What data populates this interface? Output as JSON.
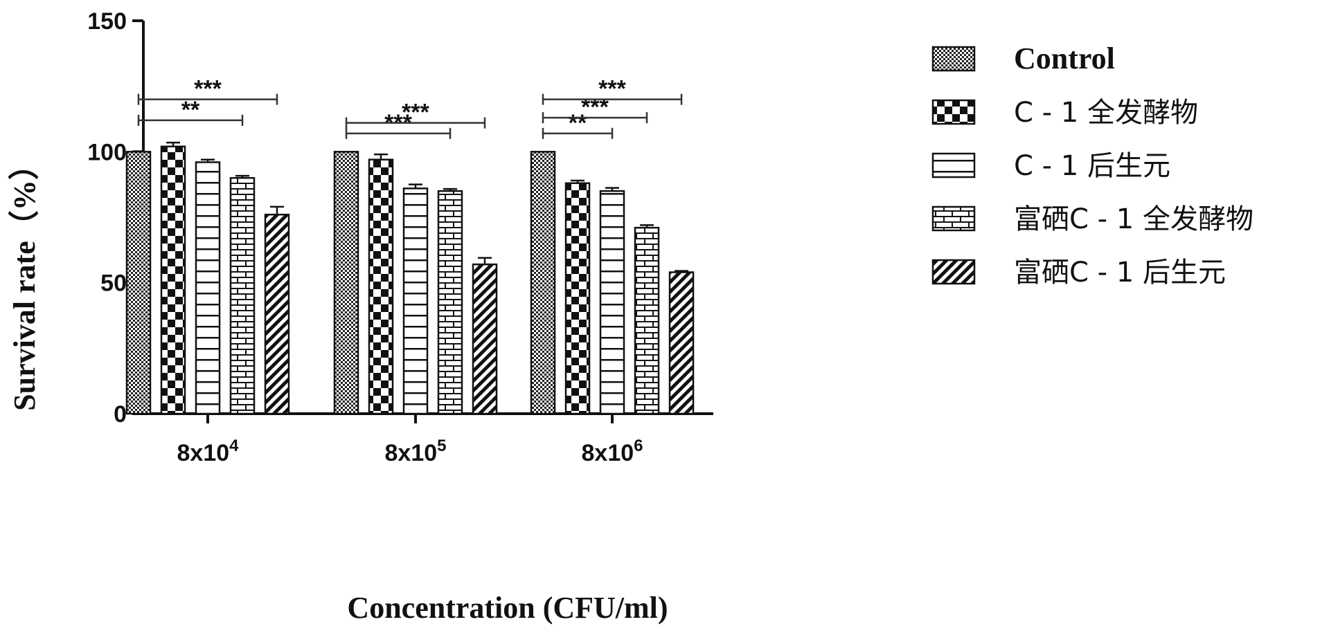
{
  "chart_data": {
    "type": "bar",
    "ylabel": "Survival rate（%）",
    "xlabel": "Concentration (CFU/ml)",
    "ylim": [
      0,
      150
    ],
    "yticks": [
      0,
      50,
      100,
      150
    ],
    "categories": [
      {
        "base": "8x10",
        "exp": "4"
      },
      {
        "base": "8x10",
        "exp": "5"
      },
      {
        "base": "8x10",
        "exp": "6"
      }
    ],
    "series": [
      {
        "name": "Control",
        "values": [
          100,
          100,
          100
        ],
        "errors": [
          0,
          0,
          0
        ],
        "pattern": "pat-dots"
      },
      {
        "name": "C-1全发酵物",
        "values": [
          102,
          97,
          88
        ],
        "errors": [
          1.5,
          2,
          1
        ],
        "pattern": "pat-checker"
      },
      {
        "name": "C-1后生元",
        "values": [
          96,
          86,
          85
        ],
        "errors": [
          1,
          1.5,
          1.2
        ],
        "pattern": "pat-hlines"
      },
      {
        "name": "富硒C-1全发酵物",
        "values": [
          90,
          85,
          71
        ],
        "errors": [
          0.8,
          0.8,
          1
        ],
        "pattern": "pat-brick"
      },
      {
        "name": "富硒C-1后生元",
        "values": [
          76,
          57,
          54
        ],
        "errors": [
          3,
          2.5,
          0.5
        ],
        "pattern": "pat-diag"
      }
    ],
    "significance": [
      {
        "group": 0,
        "from": 0,
        "to": 3,
        "y": 112,
        "label": "**"
      },
      {
        "group": 0,
        "from": 0,
        "to": 4,
        "y": 120,
        "label": "***"
      },
      {
        "group": 1,
        "from": 0,
        "to": 3,
        "y": 107,
        "label": "***"
      },
      {
        "group": 1,
        "from": 0,
        "to": 4,
        "y": 111,
        "label": "***"
      },
      {
        "group": 2,
        "from": 0,
        "to": 2,
        "y": 107,
        "label": "**"
      },
      {
        "group": 2,
        "from": 0,
        "to": 3,
        "y": 113,
        "label": "***"
      },
      {
        "group": 2,
        "from": 0,
        "to": 4,
        "y": 120,
        "label": "***"
      }
    ],
    "legend": [
      {
        "label": "Control",
        "bold": true
      },
      {
        "label": "C - 1 全发酵物",
        "bold": false
      },
      {
        "label": "C - 1 后生元",
        "bold": false
      },
      {
        "label": "富硒C - 1 全发酵物",
        "bold": false
      },
      {
        "label": "富硒C - 1 后生元",
        "bold": false
      }
    ],
    "legend_position": "right",
    "grid": false
  }
}
